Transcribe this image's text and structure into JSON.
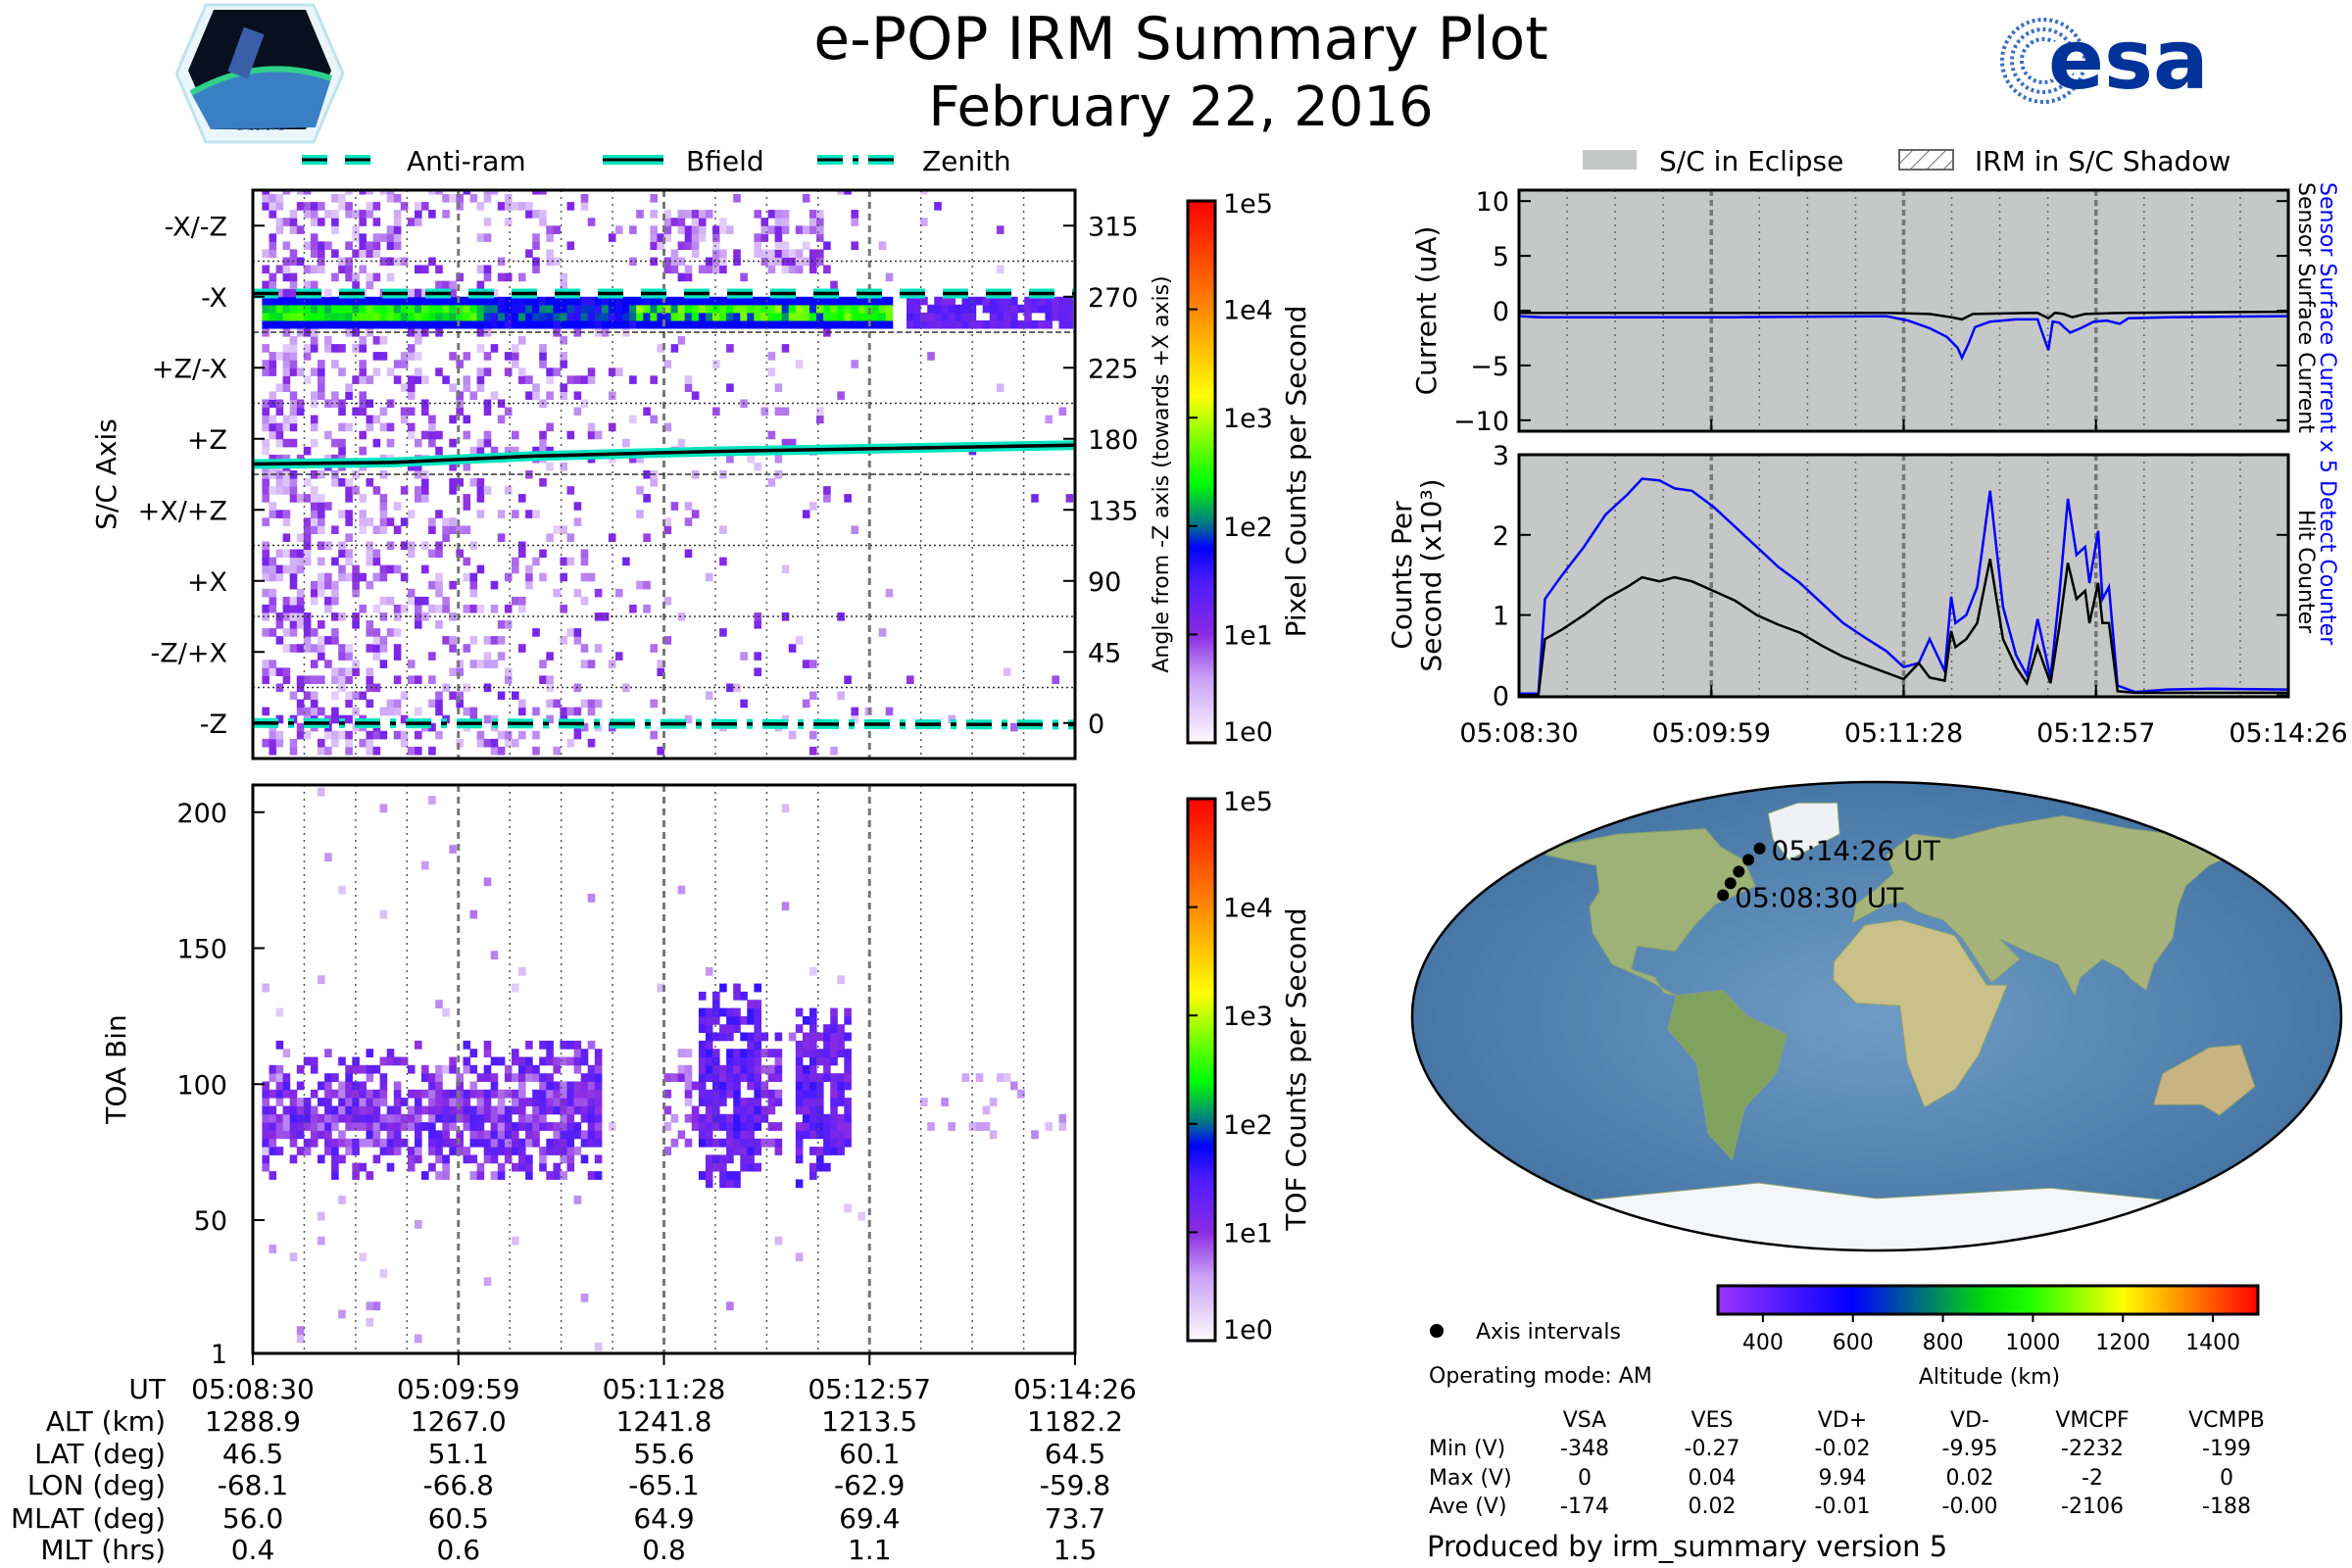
{
  "header": {
    "title": "e-POP IRM Summary Plot",
    "date": "February 22, 2016"
  },
  "logos": {
    "left": "CASSIOPE",
    "right": "esa"
  },
  "legend_left": {
    "items": [
      {
        "label": "Anti-ram",
        "style": "dashed"
      },
      {
        "label": "Bfield",
        "style": "solid"
      },
      {
        "label": "Zenith",
        "style": "dashdot"
      }
    ]
  },
  "legend_right": {
    "items": [
      {
        "label": "S/C in Eclipse",
        "color": "#c5c8c6"
      },
      {
        "label": "IRM in S/C Shadow"
      }
    ]
  },
  "colors": {
    "overlay_line": "#00e5c0",
    "series_blue": "#0000ff",
    "series_black": "#000000",
    "eclipse_bg": "#c5c8c6",
    "esa_blue": "#003399"
  },
  "chart_data": [
    {
      "type": "heatmap",
      "name": "angle-histogram",
      "ylabel_left": "S/C Axis",
      "ylabel_right": "Angle from -Z axis (towards +X axis)",
      "xlim": [
        0,
        356
      ],
      "x_unit": "seconds since 05:08:30",
      "ylim": [
        -22.5,
        337.5
      ],
      "yticks": [
        315,
        270,
        225,
        180,
        135,
        90,
        45,
        0
      ],
      "ytick_labels_left": [
        "-X/-Z",
        "-X",
        "+Z/-X",
        "+Z",
        "+X/+Z",
        "+X",
        "-Z/+X",
        "-Z"
      ],
      "ytick_labels_right": [
        "315",
        "270",
        "225",
        "180",
        "135",
        "90",
        "45",
        "0"
      ],
      "colorbar": {
        "label": "Pixel Counts per Second",
        "scale": "log",
        "range": [
          1,
          100000
        ],
        "tick_labels": [
          "1e5",
          "1e4",
          "1e3",
          "1e2",
          "1e1",
          "1e0"
        ]
      },
      "overlays": {
        "anti_ram": [
          [
            0,
            272
          ],
          [
            356,
            272
          ]
        ],
        "bfield": [
          [
            0,
            164
          ],
          [
            60,
            165
          ],
          [
            120,
            169
          ],
          [
            200,
            172
          ],
          [
            280,
            174
          ],
          [
            356,
            176
          ]
        ],
        "zenith": [
          [
            0,
            0
          ],
          [
            356,
            -1
          ]
        ]
      },
      "features": {
        "dense_band_deg": [
          250,
          268
        ],
        "dense_band_time": [
          5,
          277
        ],
        "weak_band_time": [
          280,
          352
        ]
      }
    },
    {
      "type": "heatmap",
      "name": "toa-histogram",
      "ylabel": "TOA Bin",
      "xlim": [
        0,
        356
      ],
      "ylim": [
        1,
        210
      ],
      "yticks": [
        200,
        150,
        100,
        50,
        1
      ],
      "ytick_labels": [
        "200",
        "150",
        "100",
        "50",
        "1"
      ],
      "colorbar": {
        "label": "TOF Counts per Second",
        "scale": "log",
        "range": [
          1,
          100000
        ],
        "tick_labels": [
          "1e5",
          "1e4",
          "1e3",
          "1e2",
          "1e1",
          "1e0"
        ]
      }
    },
    {
      "type": "line",
      "name": "sensor-current",
      "ylabel": "Current (uA)",
      "xlim": [
        0,
        356
      ],
      "ylim": [
        -11,
        11
      ],
      "yticks": [
        10,
        5,
        0,
        -5,
        -10
      ],
      "ytick_labels": [
        "10",
        "5",
        "0",
        "−5",
        "−10"
      ],
      "xtick_labels": [
        "05:08:30",
        "05:09:59",
        "05:11:28",
        "05:12:57",
        "05:14:26"
      ],
      "series": [
        {
          "name": "Sensor Surface Current x 5",
          "color": "#0000ff",
          "points": [
            [
              0,
              -0.5
            ],
            [
              10,
              -0.6
            ],
            [
              100,
              -0.6
            ],
            [
              170,
              -0.5
            ],
            [
              180,
              -0.9
            ],
            [
              190,
              -1.6
            ],
            [
              198,
              -2.4
            ],
            [
              203,
              -3.4
            ],
            [
              205,
              -4.3
            ],
            [
              208,
              -3.0
            ],
            [
              211,
              -1.5
            ],
            [
              218,
              -1.0
            ],
            [
              230,
              -0.8
            ],
            [
              240,
              -0.8
            ],
            [
              243,
              -2.5
            ],
            [
              245,
              -3.6
            ],
            [
              247,
              -1.0
            ],
            [
              250,
              -1.1
            ],
            [
              255,
              -2.0
            ],
            [
              260,
              -1.6
            ],
            [
              266,
              -1.0
            ],
            [
              272,
              -0.9
            ],
            [
              278,
              -1.2
            ],
            [
              282,
              -0.7
            ],
            [
              300,
              -0.6
            ],
            [
              356,
              -0.5
            ]
          ]
        },
        {
          "name": "Sensor Surface Current",
          "color": "#000000",
          "points": [
            [
              0,
              -0.2
            ],
            [
              170,
              -0.2
            ],
            [
              190,
              -0.3
            ],
            [
              200,
              -0.6
            ],
            [
              205,
              -0.8
            ],
            [
              210,
              -0.3
            ],
            [
              240,
              -0.2
            ],
            [
              245,
              -0.7
            ],
            [
              248,
              -0.2
            ],
            [
              252,
              -0.3
            ],
            [
              256,
              -0.6
            ],
            [
              262,
              -0.3
            ],
            [
              280,
              -0.2
            ],
            [
              356,
              -0.1
            ]
          ]
        }
      ],
      "background": "S/C in Eclipse"
    },
    {
      "type": "line",
      "name": "counts-per-second",
      "ylabel_lines": [
        "Counts Per",
        "Second (x10³)"
      ],
      "right_labels": [
        "Detect Counter",
        "Hit Counter"
      ],
      "xlim": [
        0,
        356
      ],
      "ylim": [
        0,
        3
      ],
      "yticks": [
        3,
        2,
        1,
        0
      ],
      "ytick_labels": [
        "3",
        "2",
        "1",
        "0"
      ],
      "series": [
        {
          "name": "Detect Counter",
          "color": "#0000ff",
          "points": [
            [
              0,
              0.02
            ],
            [
              9,
              0.02
            ],
            [
              12,
              1.2
            ],
            [
              20,
              1.5
            ],
            [
              30,
              1.85
            ],
            [
              40,
              2.25
            ],
            [
              50,
              2.5
            ],
            [
              57,
              2.7
            ],
            [
              65,
              2.68
            ],
            [
              72,
              2.58
            ],
            [
              80,
              2.55
            ],
            [
              90,
              2.35
            ],
            [
              100,
              2.1
            ],
            [
              110,
              1.85
            ],
            [
              120,
              1.6
            ],
            [
              130,
              1.4
            ],
            [
              140,
              1.15
            ],
            [
              150,
              0.9
            ],
            [
              160,
              0.72
            ],
            [
              170,
              0.55
            ],
            [
              178,
              0.35
            ],
            [
              185,
              0.4
            ],
            [
              190,
              0.7
            ],
            [
              197,
              0.3
            ],
            [
              200,
              1.23
            ],
            [
              202,
              0.9
            ],
            [
              207,
              1.0
            ],
            [
              212,
              1.35
            ],
            [
              218,
              2.55
            ],
            [
              224,
              1.1
            ],
            [
              230,
              0.5
            ],
            [
              235,
              0.25
            ],
            [
              240,
              0.95
            ],
            [
              246,
              0.22
            ],
            [
              250,
              1.25
            ],
            [
              254,
              2.45
            ],
            [
              258,
              1.75
            ],
            [
              262,
              1.85
            ],
            [
              264,
              1.4
            ],
            [
              268,
              2.05
            ],
            [
              270,
              1.2
            ],
            [
              273,
              1.35
            ],
            [
              277,
              0.12
            ],
            [
              285,
              0.04
            ],
            [
              300,
              0.07
            ],
            [
              320,
              0.08
            ],
            [
              356,
              0.07
            ]
          ]
        },
        {
          "name": "Hit Counter",
          "color": "#000000",
          "points": [
            [
              0,
              0.0
            ],
            [
              9,
              0.0
            ],
            [
              12,
              0.7
            ],
            [
              20,
              0.82
            ],
            [
              30,
              1.0
            ],
            [
              40,
              1.2
            ],
            [
              50,
              1.35
            ],
            [
              57,
              1.47
            ],
            [
              65,
              1.42
            ],
            [
              72,
              1.47
            ],
            [
              80,
              1.42
            ],
            [
              90,
              1.3
            ],
            [
              100,
              1.18
            ],
            [
              110,
              1.0
            ],
            [
              120,
              0.88
            ],
            [
              130,
              0.78
            ],
            [
              140,
              0.62
            ],
            [
              150,
              0.48
            ],
            [
              160,
              0.38
            ],
            [
              170,
              0.28
            ],
            [
              178,
              0.2
            ],
            [
              185,
              0.4
            ],
            [
              190,
              0.22
            ],
            [
              197,
              0.18
            ],
            [
              200,
              0.8
            ],
            [
              202,
              0.6
            ],
            [
              207,
              0.7
            ],
            [
              212,
              0.9
            ],
            [
              218,
              1.7
            ],
            [
              224,
              0.7
            ],
            [
              230,
              0.35
            ],
            [
              235,
              0.15
            ],
            [
              240,
              0.6
            ],
            [
              246,
              0.15
            ],
            [
              250,
              0.85
            ],
            [
              254,
              1.65
            ],
            [
              258,
              1.2
            ],
            [
              262,
              1.3
            ],
            [
              264,
              0.9
            ],
            [
              268,
              1.4
            ],
            [
              270,
              0.9
            ],
            [
              273,
              0.9
            ],
            [
              277,
              0.05
            ],
            [
              285,
              0.03
            ],
            [
              356,
              0.03
            ]
          ]
        }
      ],
      "background": "S/C in Eclipse"
    },
    {
      "type": "scatter",
      "name": "orbit-map",
      "projection": "robinson",
      "points": [
        {
          "lon": -68.1,
          "lat": 46.5
        },
        {
          "lon": -66.8,
          "lat": 51.1
        },
        {
          "lon": -65.1,
          "lat": 55.6
        },
        {
          "lon": -62.9,
          "lat": 60.1
        },
        {
          "lon": -59.8,
          "lat": 64.5
        }
      ],
      "labels": {
        "end": "05:14:26 UT",
        "start": "05:08:30 UT"
      },
      "colorbar": {
        "label": "Altitude (km)",
        "range": [
          300,
          1500
        ],
        "ticks": [
          400,
          600,
          800,
          1000,
          1200,
          1400
        ],
        "tick_labels": [
          "400",
          "600",
          "800",
          "1000",
          "1200",
          "1400"
        ]
      }
    }
  ],
  "ephemeris_table": {
    "row_labels": [
      "UT",
      "ALT (km)",
      "LAT (deg)",
      "LON (deg)",
      "MLAT (deg)",
      "MLT (hrs)"
    ],
    "rows": [
      [
        "05:08:30",
        "05:09:59",
        "05:11:28",
        "05:12:57",
        "05:14:26"
      ],
      [
        "1288.9",
        "1267.0",
        "1241.8",
        "1213.5",
        "1182.2"
      ],
      [
        "46.5",
        "51.1",
        "55.6",
        "60.1",
        "64.5"
      ],
      [
        "-68.1",
        "-66.8",
        "-65.1",
        "-62.9",
        "-59.8"
      ],
      [
        "56.0",
        "60.5",
        "64.9",
        "69.4",
        "73.7"
      ],
      [
        "0.4",
        "0.6",
        "0.8",
        "1.1",
        "1.5"
      ]
    ]
  },
  "axis_intervals_label": "Axis intervals",
  "operating_mode": "Operating mode: AM",
  "voltage_table": {
    "headers": [
      "VSA",
      "VES",
      "VD+",
      "VD-",
      "VMCPF",
      "VCMPB"
    ],
    "row_labels": [
      "Min (V)",
      "Max (V)",
      "Ave (V)"
    ],
    "rows": [
      [
        "-348",
        "-0.27",
        "-0.02",
        "-9.95",
        "-2232",
        "-199"
      ],
      [
        "0",
        "0.04",
        "9.94",
        "0.02",
        "-2",
        "0"
      ],
      [
        "-174",
        "0.02",
        "-0.01",
        "-0.00",
        "-2106",
        "-188"
      ]
    ]
  },
  "footer": "Produced by irm_summary version 5"
}
